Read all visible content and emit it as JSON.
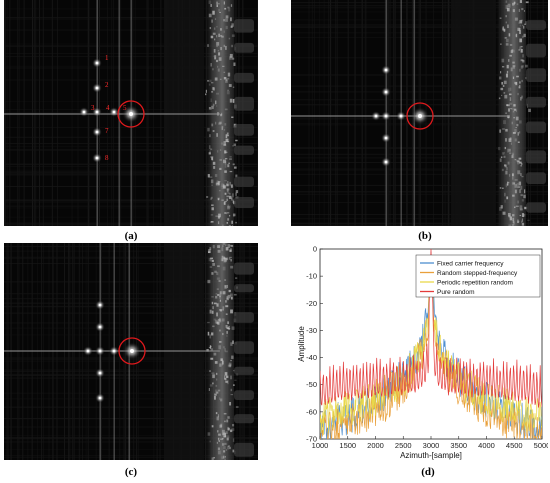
{
  "panels": {
    "a": {
      "label": "(a)",
      "markers": [
        "1",
        "2",
        "3",
        "4",
        "5",
        "6",
        "7",
        "8"
      ]
    },
    "b": {
      "label": "(b)"
    },
    "c": {
      "label": "(c)"
    },
    "d": {
      "label": "(d)"
    }
  },
  "colors": {
    "circle": "#e0191c",
    "marker_text": "#ff2b2b"
  },
  "chart_data": {
    "type": "line",
    "xlabel": "Azimuth-[sample]",
    "ylabel": "Amplitude",
    "xlim": [
      1000,
      5000
    ],
    "ylim": [
      -70,
      0
    ],
    "xticks": [
      "1000",
      "1500",
      "2000",
      "2500",
      "3000",
      "3500",
      "4000",
      "4500",
      "5000"
    ],
    "yticks": [
      "0",
      "-10",
      "-20",
      "-30",
      "-40",
      "-50",
      "-60",
      "-70"
    ],
    "legend_position": "top-right",
    "series": [
      {
        "name": "Fixed carrier frequency",
        "color": "#4f8fd0",
        "x": [
          1000,
          1250,
          1500,
          1750,
          2000,
          2250,
          2500,
          2700,
          2850,
          2950,
          3000,
          3050,
          3150,
          3300,
          3500,
          3750,
          4000,
          4250,
          4500,
          4750,
          5000
        ],
        "y": [
          -62,
          -60,
          -58,
          -55,
          -52,
          -48,
          -43,
          -37,
          -30,
          -20,
          -1,
          -20,
          -30,
          -37,
          -43,
          -48,
          -52,
          -55,
          -58,
          -60,
          -62
        ]
      },
      {
        "name": "Random stepped-frequency",
        "color": "#e9a03b",
        "x": [
          1000,
          1250,
          1500,
          1750,
          2000,
          2250,
          2500,
          2700,
          2850,
          2950,
          3000,
          3050,
          3150,
          3300,
          3500,
          3750,
          4000,
          4250,
          4500,
          4750,
          5000
        ],
        "y": [
          -64,
          -62,
          -60,
          -58,
          -55,
          -52,
          -47,
          -41,
          -33,
          -22,
          -2,
          -22,
          -33,
          -41,
          -47,
          -52,
          -55,
          -58,
          -60,
          -62,
          -64
        ]
      },
      {
        "name": "Periodic repetition random",
        "color": "#e9d84a",
        "x": [
          1000,
          1250,
          1500,
          1750,
          2000,
          2250,
          2500,
          2700,
          2850,
          2950,
          3000,
          3050,
          3150,
          3300,
          3500,
          3750,
          4000,
          4250,
          4500,
          4750,
          5000
        ],
        "y": [
          -58,
          -57,
          -55,
          -53,
          -51,
          -48,
          -44,
          -39,
          -33,
          -24,
          -3,
          -24,
          -33,
          -39,
          -44,
          -48,
          -51,
          -53,
          -55,
          -57,
          -58
        ]
      },
      {
        "name": "Pure random",
        "color": "#e33b3b",
        "x": [
          1000,
          1250,
          1500,
          1750,
          2000,
          2250,
          2500,
          2700,
          2850,
          2950,
          3000,
          3050,
          3150,
          3300,
          3500,
          3750,
          4000,
          4250,
          4500,
          4750,
          5000
        ],
        "y": [
          -44,
          -42,
          -41,
          -41,
          -40,
          -40,
          -39,
          -39,
          -37,
          -32,
          0,
          -32,
          -37,
          -39,
          -39,
          -40,
          -40,
          -41,
          -41,
          -42,
          -44
        ]
      }
    ]
  }
}
